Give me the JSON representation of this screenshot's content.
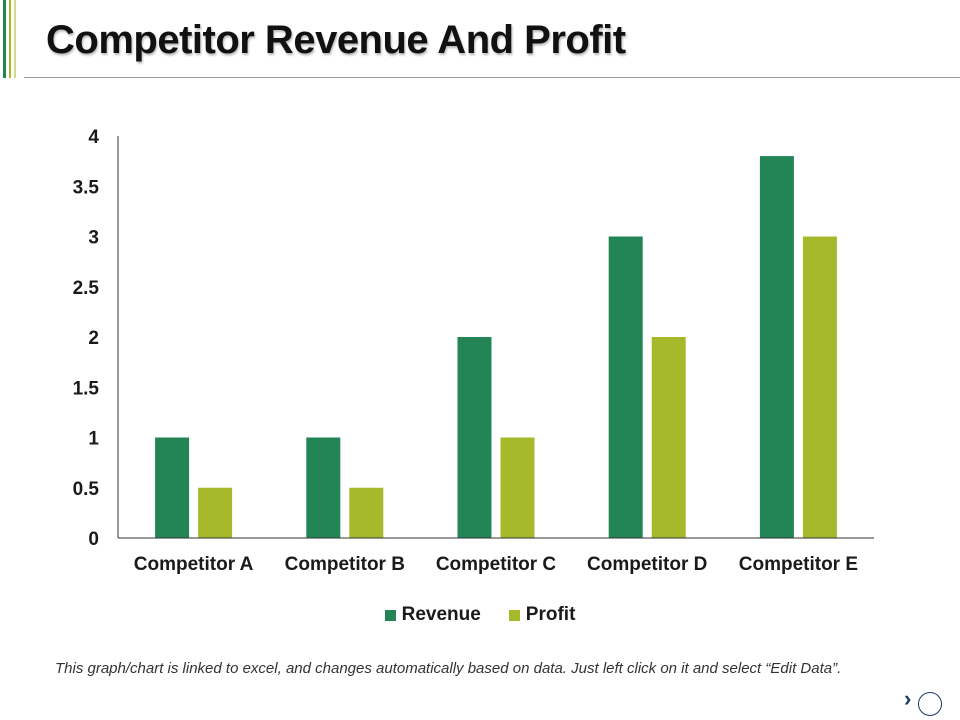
{
  "slide": {
    "title": "Competitor Revenue And Profit",
    "footnote": "This graph/chart is linked to excel, and changes automatically based on data. Just left click on it and select “Edit Data”.",
    "nav_arrow": "›"
  },
  "colors": {
    "revenue": "#238456",
    "profit": "#a5b92b",
    "accent_light": "#cfdc8a",
    "axis": "#333333"
  },
  "chart_data": {
    "type": "bar",
    "title": "",
    "xlabel": "",
    "ylabel": "",
    "categories": [
      "Competitor A",
      "Competitor B",
      "Competitor C",
      "Competitor D",
      "Competitor E"
    ],
    "series": [
      {
        "name": "Revenue",
        "values": [
          1,
          1,
          2,
          3,
          3.8
        ]
      },
      {
        "name": "Profit",
        "values": [
          0.5,
          0.5,
          1,
          2,
          3
        ]
      }
    ],
    "ylim": [
      0,
      4
    ],
    "yticks": [
      "0",
      "0.5",
      "1",
      "1.5",
      "2",
      "2.5",
      "3",
      "3.5",
      "4"
    ],
    "grid": false,
    "legend": "bottom"
  }
}
